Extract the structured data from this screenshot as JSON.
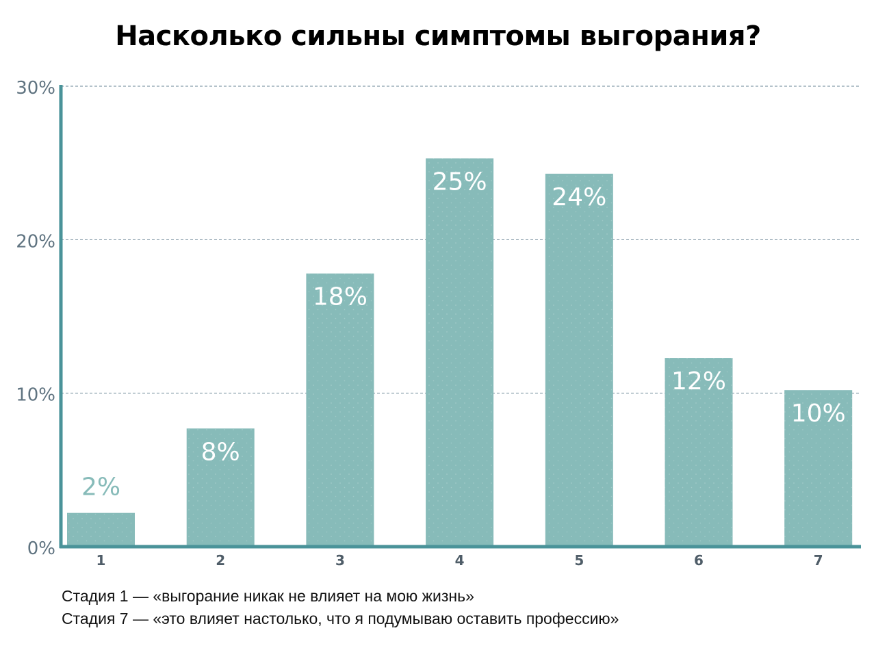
{
  "chart_data": {
    "type": "bar",
    "title": "Насколько сильны симптомы выгорания?",
    "xlabel": "",
    "ylabel": "",
    "categories": [
      "1",
      "2",
      "3",
      "4",
      "5",
      "6",
      "7"
    ],
    "values": [
      2.2,
      7.7,
      17.8,
      25.3,
      24.3,
      12.3,
      10.2
    ],
    "data_labels": [
      "2%",
      "8%",
      "18%",
      "25%",
      "24%",
      "12%",
      "10%"
    ],
    "ylim": [
      0,
      30
    ],
    "yticks": [
      0,
      10,
      20,
      30
    ],
    "ytick_labels": [
      "0%",
      "10%",
      "20%",
      "30%"
    ],
    "grid": true,
    "legend": "none"
  },
  "notes": [
    "Стадия 1 — «выгорание никак не влияет на мою жизнь»",
    "Стадия 7 — «это влияет настолько, что я подумываю оставить профессию»"
  ],
  "colors": {
    "bar": "#87bbb9",
    "axis": "#4a9399",
    "grid": "#6a8595",
    "tick_text": "#5f7380",
    "category_text": "#4f5d68",
    "label_inside": "#ffffff",
    "label_outside": "#87bbb9"
  }
}
